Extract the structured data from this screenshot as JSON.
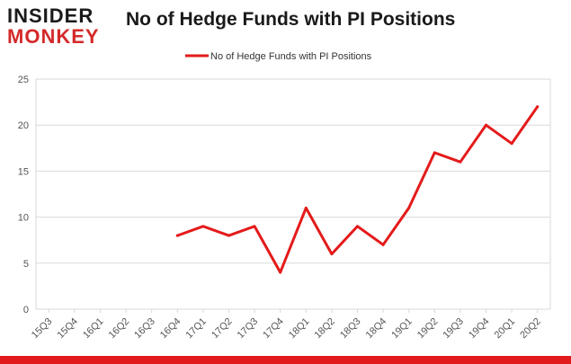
{
  "logo": {
    "line1": "INSIDER",
    "line2": "MONKEY"
  },
  "colors": {
    "series": "#e41a1a",
    "grid": "#d9d9d9",
    "axis_text": "#555555",
    "brand_red": "#d42a2a",
    "bottom_bar": "#e11b1b"
  },
  "chart_data": {
    "type": "line",
    "title": "No of Hedge Funds with PI Positions",
    "xlabel": "",
    "ylabel": "",
    "ylim": [
      0,
      25
    ],
    "yticks": [
      0,
      5,
      10,
      15,
      20,
      25
    ],
    "grid": true,
    "legend": "top-center",
    "categories": [
      "15Q3",
      "15Q4",
      "16Q1",
      "16Q2",
      "16Q3",
      "16Q4",
      "17Q1",
      "17Q2",
      "17Q3",
      "17Q4",
      "18Q1",
      "18Q2",
      "18Q3",
      "18Q4",
      "19Q1",
      "19Q2",
      "19Q3",
      "19Q4",
      "20Q1",
      "20Q2"
    ],
    "series": [
      {
        "name": "No of Hedge Funds with PI Positions",
        "values": [
          null,
          null,
          null,
          null,
          null,
          8,
          9,
          8,
          9,
          4,
          11,
          6,
          9,
          7,
          11,
          17,
          16,
          20,
          18,
          22
        ]
      }
    ]
  }
}
